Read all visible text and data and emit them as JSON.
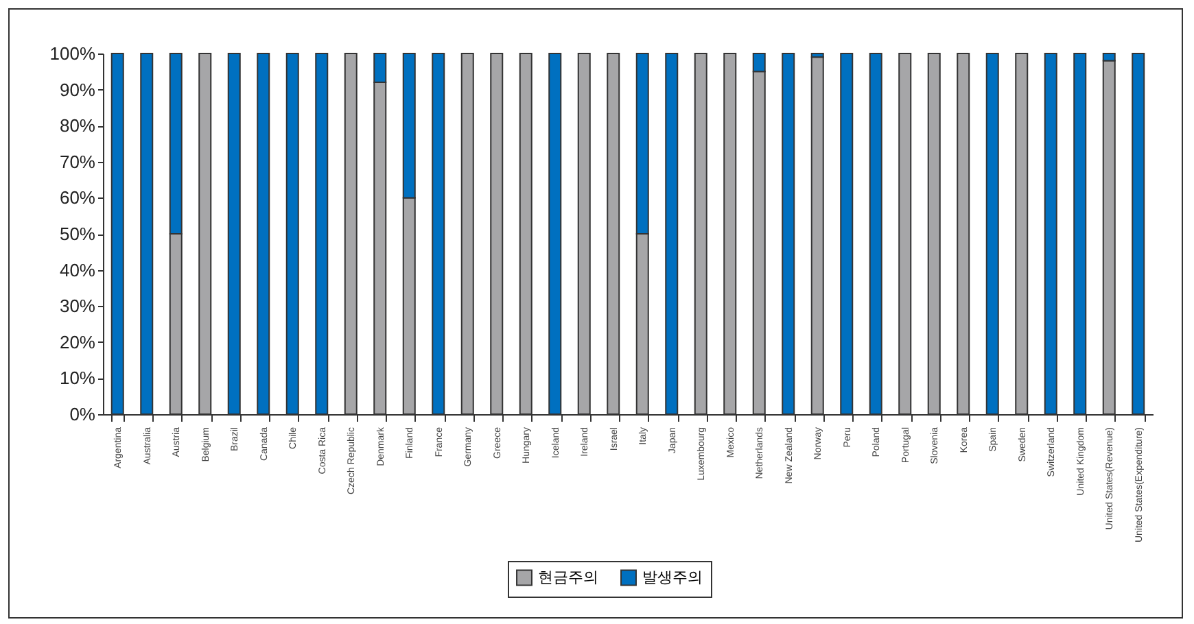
{
  "chart_data": {
    "type": "bar",
    "stacked": true,
    "legend": "bottom",
    "grid": false,
    "categories": [
      "Argentina",
      "Australia",
      "Austria",
      "Belgium",
      "Brazil",
      "Canada",
      "Chile",
      "Costa Rica",
      "Czech Republic",
      "Denmark",
      "Finland",
      "France",
      "Germany",
      "Greece",
      "Hungary",
      "Iceland",
      "Ireland",
      "Israel",
      "Italy",
      "Japan",
      "Luxembourg",
      "Mexico",
      "Netherlands",
      "New Zealand",
      "Norway",
      "Peru",
      "Poland",
      "Portugal",
      "Slovenia",
      "Korea",
      "Spain",
      "Sweden",
      "Switzerland",
      "United Kingdom",
      "United States(Revenue)",
      "United States(Expenditure)"
    ],
    "series": [
      {
        "name": "현금주의",
        "color": "#a6a6a8",
        "values": [
          0,
          0,
          50,
          100,
          0,
          0,
          0,
          0,
          100,
          92,
          60,
          0,
          100,
          100,
          100,
          0,
          100,
          100,
          50,
          0,
          100,
          100,
          95,
          0,
          99,
          0,
          0,
          100,
          100,
          100,
          0,
          100,
          0,
          0,
          98,
          0
        ]
      },
      {
        "name": "발생주의",
        "color": "#0070c0",
        "values": [
          100,
          100,
          50,
          0,
          100,
          100,
          100,
          100,
          0,
          8,
          40,
          100,
          0,
          0,
          0,
          100,
          0,
          0,
          50,
          100,
          0,
          0,
          5,
          100,
          1,
          100,
          100,
          0,
          0,
          0,
          100,
          0,
          100,
          100,
          2,
          100
        ]
      }
    ],
    "ylim": [
      0,
      100
    ],
    "yticks": [
      {
        "value": 0,
        "label": "0%"
      },
      {
        "value": 10,
        "label": "10%"
      },
      {
        "value": 20,
        "label": "20%"
      },
      {
        "value": 30,
        "label": "30%"
      },
      {
        "value": 40,
        "label": "40%"
      },
      {
        "value": 50,
        "label": "50%"
      },
      {
        "value": 60,
        "label": "60%"
      },
      {
        "value": 70,
        "label": "70%"
      },
      {
        "value": 80,
        "label": "80%"
      },
      {
        "value": 90,
        "label": "90%"
      },
      {
        "value": 100,
        "label": "100%"
      }
    ]
  }
}
